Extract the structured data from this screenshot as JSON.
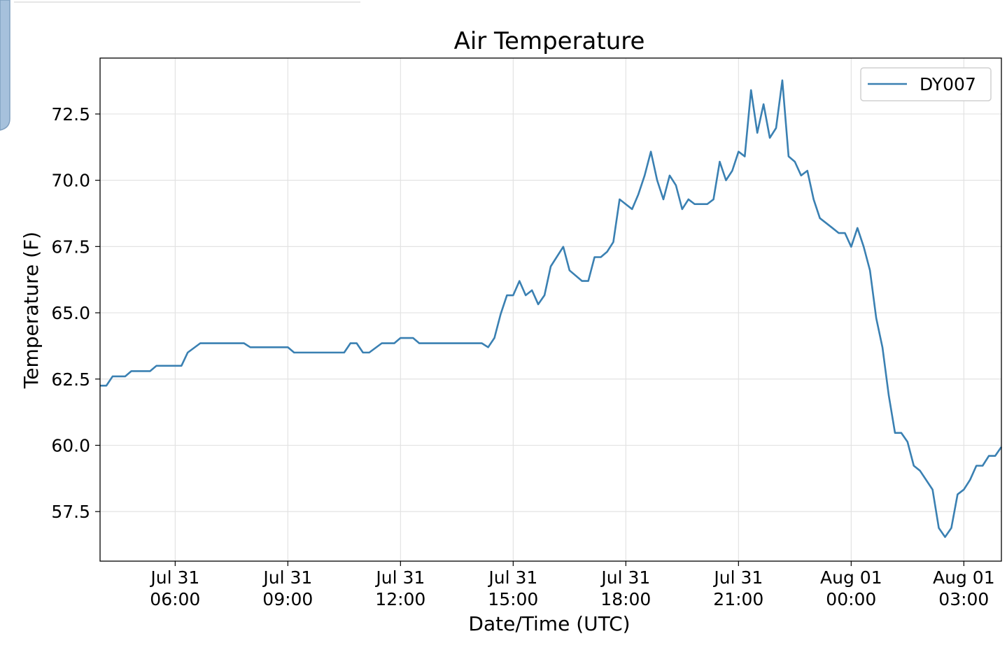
{
  "chart_data": {
    "type": "line",
    "title": "Air Temperature",
    "xlabel": "Date/Time (UTC)",
    "ylabel": "Temperature (F)",
    "x": [
      "Jul 31 04:00",
      "Jul 31 04:10",
      "Jul 31 04:20",
      "Jul 31 04:40",
      "Jul 31 04:50",
      "Jul 31 05:20",
      "Jul 31 05:30",
      "Jul 31 06:10",
      "Jul 31 06:20",
      "Jul 31 06:40",
      "Jul 31 07:50",
      "Jul 31 08:00",
      "Jul 31 09:00",
      "Jul 31 09:10",
      "Jul 31 10:30",
      "Jul 31 10:40",
      "Jul 31 10:50",
      "Jul 31 11:00",
      "Jul 31 11:10",
      "Jul 31 11:30",
      "Jul 31 11:50",
      "Jul 31 12:00",
      "Jul 31 12:20",
      "Jul 31 12:30",
      "Jul 31 14:10",
      "Jul 31 14:20",
      "Jul 31 14:30",
      "Jul 31 14:40",
      "Jul 31 14:50",
      "Jul 31 15:00",
      "Jul 31 15:10",
      "Jul 31 15:20",
      "Jul 31 15:30",
      "Jul 31 15:40",
      "Jul 31 15:50",
      "Jul 31 16:00",
      "Jul 31 16:20",
      "Jul 31 16:30",
      "Jul 31 16:50",
      "Jul 31 17:00",
      "Jul 31 17:10",
      "Jul 31 17:20",
      "Jul 31 17:30",
      "Jul 31 17:40",
      "Jul 31 17:50",
      "Jul 31 18:10",
      "Jul 31 18:20",
      "Jul 31 18:30",
      "Jul 31 18:40",
      "Jul 31 18:50",
      "Jul 31 19:00",
      "Jul 31 19:10",
      "Jul 31 19:20",
      "Jul 31 19:30",
      "Jul 31 19:40",
      "Jul 31 19:50",
      "Jul 31 20:10",
      "Jul 31 20:20",
      "Jul 31 20:30",
      "Jul 31 20:40",
      "Jul 31 20:50",
      "Jul 31 21:00",
      "Jul 31 21:10",
      "Jul 31 21:20",
      "Jul 31 21:30",
      "Jul 31 21:40",
      "Jul 31 21:50",
      "Jul 31 22:00",
      "Jul 31 22:10",
      "Jul 31 22:20",
      "Jul 31 22:30",
      "Jul 31 22:40",
      "Jul 31 22:50",
      "Jul 31 23:00",
      "Jul 31 23:10",
      "Jul 31 23:30",
      "Jul 31 23:40",
      "Jul 31 23:50",
      "Aug 01 00:00",
      "Aug 01 00:10",
      "Aug 01 00:20",
      "Aug 01 00:30",
      "Aug 01 00:40",
      "Aug 01 00:50",
      "Aug 01 01:00",
      "Aug 01 01:10",
      "Aug 01 01:20",
      "Aug 01 01:30",
      "Aug 01 01:40",
      "Aug 01 01:50",
      "Aug 01 02:10",
      "Aug 01 02:20",
      "Aug 01 02:30",
      "Aug 01 02:40",
      "Aug 01 02:50",
      "Aug 01 03:00",
      "Aug 01 03:10",
      "Aug 01 03:20",
      "Aug 01 03:30",
      "Aug 01 03:40",
      "Aug 01 03:50",
      "Aug 01 04:00"
    ],
    "series": [
      {
        "name": "DY007",
        "color": "#3a80b2",
        "values": [
          62.25,
          62.25,
          62.6,
          62.6,
          62.8,
          62.8,
          63.0,
          63.0,
          63.5,
          63.85,
          63.85,
          63.7,
          63.7,
          63.5,
          63.5,
          63.85,
          63.85,
          63.5,
          63.5,
          63.85,
          63.85,
          64.05,
          64.05,
          63.85,
          63.85,
          63.7,
          64.05,
          64.95,
          65.66,
          65.66,
          66.2,
          65.66,
          65.85,
          65.32,
          65.66,
          66.75,
          67.49,
          66.6,
          66.2,
          66.2,
          67.1,
          67.1,
          67.3,
          67.67,
          69.28,
          68.91,
          69.47,
          70.18,
          71.08,
          70.0,
          69.28,
          70.18,
          69.81,
          68.91,
          69.28,
          69.1,
          69.1,
          69.28,
          70.7,
          70.0,
          70.36,
          71.08,
          70.9,
          73.4,
          71.79,
          72.87,
          71.6,
          71.97,
          73.77,
          70.9,
          70.7,
          70.18,
          70.36,
          69.28,
          68.57,
          68.2,
          68.01,
          68.01,
          67.49,
          68.2,
          67.49,
          66.6,
          64.8,
          63.69,
          61.89,
          60.47,
          60.47,
          60.13,
          59.23,
          59.04,
          58.33,
          56.88,
          56.54,
          56.88,
          58.15,
          58.33,
          58.7,
          59.23,
          59.23,
          59.6,
          59.6,
          59.94
        ]
      }
    ],
    "xlim": [
      "Jul 31 04:00",
      "Aug 01 04:00"
    ],
    "xticks": [
      {
        "value": "Jul 31 06:00",
        "label": [
          "Jul 31",
          "06:00"
        ]
      },
      {
        "value": "Jul 31 09:00",
        "label": [
          "Jul 31",
          "09:00"
        ]
      },
      {
        "value": "Jul 31 12:00",
        "label": [
          "Jul 31",
          "12:00"
        ]
      },
      {
        "value": "Jul 31 15:00",
        "label": [
          "Jul 31",
          "15:00"
        ]
      },
      {
        "value": "Jul 31 18:00",
        "label": [
          "Jul 31",
          "18:00"
        ]
      },
      {
        "value": "Jul 31 21:00",
        "label": [
          "Jul 31",
          "21:00"
        ]
      },
      {
        "value": "Aug 01 00:00",
        "label": [
          "Aug 01",
          "00:00"
        ]
      },
      {
        "value": "Aug 01 03:00",
        "label": [
          "Aug 01",
          "03:00"
        ]
      }
    ],
    "ylim": [
      55.63,
      74.61
    ],
    "yticks": [
      57.5,
      {
        "value": 60,
        "label": "60.0"
      },
      62.5,
      {
        "value": 65,
        "label": "65.0"
      },
      67.5,
      {
        "value": 70,
        "label": "70.0"
      },
      72.5
    ],
    "grid": true,
    "legend": "upper right"
  }
}
